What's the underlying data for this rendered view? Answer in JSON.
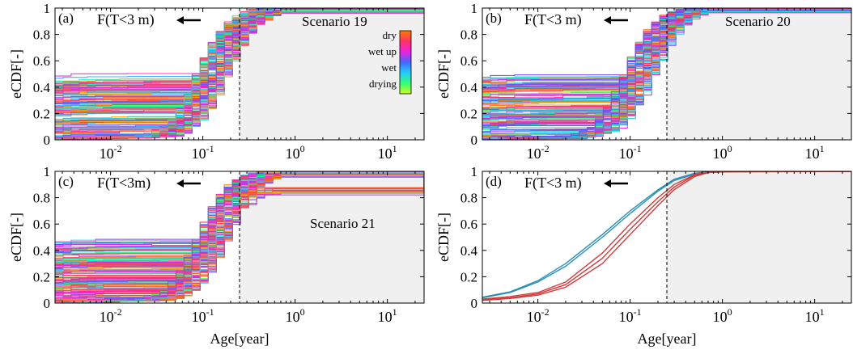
{
  "figure": {
    "colors": {
      "shade": "#f0f0f0",
      "reference_line": "#000000",
      "blue_curve": "#2a8fb5",
      "red_curve": "#d23a3a"
    },
    "colorbar": {
      "labels": [
        "dry",
        "wet up",
        "wet",
        "drying"
      ],
      "colors": [
        "#ff7a00",
        "#ff3366",
        "#ee22dd",
        "#4466ff",
        "#22ccff",
        "#33ff77",
        "#ccff22"
      ]
    }
  },
  "chart_data": [
    {
      "panel_label": "(a)",
      "type": "line",
      "xscale": "log",
      "xlim": [
        0.0025,
        25
      ],
      "ylim": [
        0,
        1
      ],
      "xticks": [
        0.01,
        0.1,
        1,
        10
      ],
      "xtick_labels": [
        {
          "base": "10",
          "exp": "-2"
        },
        {
          "base": "10",
          "exp": "-1"
        },
        {
          "base": "10",
          "exp": "0"
        },
        {
          "base": "10",
          "exp": "1"
        }
      ],
      "yticks": [
        0,
        0.2,
        0.4,
        0.6,
        0.8,
        1
      ],
      "ytick_labels": [
        "0",
        "0.2",
        "0.4",
        "0.6",
        "0.8",
        "1"
      ],
      "ylabel": "eCDF[-]",
      "xlabel": "",
      "annotation": {
        "text": "F(T<3 m)",
        "arrow": "left"
      },
      "scenario_text": "Scenario 19",
      "threshold_x": 0.25,
      "shaded_from_x": 0.25,
      "colorbar": true,
      "curve_style": "ensemble",
      "median_y_at_threshold": 0.6
    },
    {
      "panel_label": "(b)",
      "type": "line",
      "xscale": "log",
      "xlim": [
        0.0025,
        25
      ],
      "ylim": [
        0,
        1
      ],
      "xticks": [
        0.01,
        0.1,
        1,
        10
      ],
      "xtick_labels": [
        {
          "base": "10",
          "exp": "-2"
        },
        {
          "base": "10",
          "exp": "-1"
        },
        {
          "base": "10",
          "exp": "0"
        },
        {
          "base": "10",
          "exp": "1"
        }
      ],
      "yticks": [
        0,
        0.2,
        0.4,
        0.6,
        0.8,
        1
      ],
      "ytick_labels": [
        "0",
        "0.2",
        "0.4",
        "0.6",
        "0.8",
        "1"
      ],
      "ylabel": "eCDF[-]",
      "xlabel": "",
      "annotation": {
        "text": "F(T<3 m)",
        "arrow": "left"
      },
      "scenario_text": "Scenario 20",
      "threshold_x": 0.25,
      "shaded_from_x": 0.25,
      "colorbar": false,
      "curve_style": "ensemble",
      "median_y_at_threshold": 0.6
    },
    {
      "panel_label": "(c)",
      "type": "line",
      "xscale": "log",
      "xlim": [
        0.0025,
        25
      ],
      "ylim": [
        0,
        1
      ],
      "xticks": [
        0.01,
        0.1,
        1,
        10
      ],
      "xtick_labels": [
        {
          "base": "10",
          "exp": "-2"
        },
        {
          "base": "10",
          "exp": "-1"
        },
        {
          "base": "10",
          "exp": "0"
        },
        {
          "base": "10",
          "exp": "1"
        }
      ],
      "yticks": [
        0,
        0.2,
        0.4,
        0.6,
        0.8,
        1
      ],
      "ytick_labels": [
        "0",
        "0.2",
        "0.4",
        "0.6",
        "0.8",
        "1"
      ],
      "ylabel": "eCDF[-]",
      "xlabel": "Age[year]",
      "annotation": {
        "text": "F(T<3m)",
        "arrow": "left"
      },
      "scenario_text": "Scenario 21",
      "threshold_x": 0.25,
      "shaded_from_x": 0.25,
      "colorbar": false,
      "curve_style": "ensemble",
      "median_y_at_threshold": 0.65,
      "late_tail_min_y": 0.75
    },
    {
      "panel_label": "(d)",
      "type": "line",
      "xscale": "log",
      "xlim": [
        0.0025,
        25
      ],
      "ylim": [
        0,
        1
      ],
      "xticks": [
        0.01,
        0.1,
        1,
        10
      ],
      "xtick_labels": [
        {
          "base": "10",
          "exp": "-2"
        },
        {
          "base": "10",
          "exp": "-1"
        },
        {
          "base": "10",
          "exp": "0"
        },
        {
          "base": "10",
          "exp": "1"
        }
      ],
      "yticks": [
        0,
        0.2,
        0.4,
        0.6,
        0.8,
        1
      ],
      "ytick_labels": [
        "0",
        "0.2",
        "0.4",
        "0.6",
        "0.8",
        "1"
      ],
      "ylabel": "eCDF[-]",
      "xlabel": "Age[year]",
      "annotation": {
        "text": "F(T<3 m)",
        "arrow": "left"
      },
      "scenario_text": "",
      "threshold_x": 0.25,
      "shaded_from_x": 0.25,
      "colorbar": false,
      "curve_style": "summary",
      "series": [
        {
          "color": "#2a8fb5",
          "x": [
            0.0025,
            0.005,
            0.01,
            0.02,
            0.05,
            0.1,
            0.2,
            0.3,
            0.5,
            0.7,
            1,
            25
          ],
          "y": [
            0.04,
            0.08,
            0.16,
            0.28,
            0.5,
            0.68,
            0.85,
            0.93,
            0.98,
            0.995,
            1.0,
            1.0
          ]
        },
        {
          "color": "#2a8fb5",
          "x": [
            0.0025,
            0.005,
            0.01,
            0.02,
            0.05,
            0.1,
            0.2,
            0.3,
            0.5,
            0.7,
            1,
            25
          ],
          "y": [
            0.045,
            0.085,
            0.17,
            0.3,
            0.52,
            0.7,
            0.86,
            0.94,
            0.985,
            0.997,
            1.0,
            1.0
          ]
        },
        {
          "color": "#d23a3a",
          "x": [
            0.0025,
            0.005,
            0.01,
            0.02,
            0.05,
            0.1,
            0.2,
            0.3,
            0.5,
            0.7,
            1,
            25
          ],
          "y": [
            0.02,
            0.035,
            0.06,
            0.12,
            0.3,
            0.52,
            0.74,
            0.86,
            0.96,
            0.99,
            0.995,
            1.0
          ]
        },
        {
          "color": "#d23a3a",
          "x": [
            0.0025,
            0.005,
            0.01,
            0.02,
            0.05,
            0.1,
            0.2,
            0.3,
            0.5,
            0.7,
            1,
            25
          ],
          "y": [
            0.025,
            0.04,
            0.07,
            0.14,
            0.34,
            0.56,
            0.77,
            0.88,
            0.97,
            0.993,
            0.998,
            1.0
          ]
        },
        {
          "color": "#d23a3a",
          "x": [
            0.0025,
            0.005,
            0.01,
            0.02,
            0.05,
            0.1,
            0.2,
            0.3,
            0.5,
            0.7,
            1,
            25
          ],
          "y": [
            0.03,
            0.05,
            0.08,
            0.16,
            0.38,
            0.6,
            0.8,
            0.9,
            0.975,
            0.995,
            1.0,
            1.0
          ]
        }
      ]
    }
  ]
}
